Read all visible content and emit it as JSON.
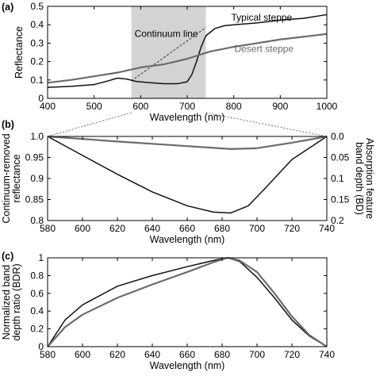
{
  "chart_data": [
    {
      "panel": "(a)",
      "type": "line",
      "xlabel": "Wavelength (nm)",
      "ylabel": "Reflectance",
      "xlim": [
        400,
        1000
      ],
      "ylim": [
        0,
        0.5
      ],
      "xticks": [
        "400",
        "500",
        "600",
        "700",
        "800",
        "900",
        "1000"
      ],
      "yticks": [
        "0",
        "0.1",
        "0.2",
        "0.3",
        "0.4",
        "0.5"
      ],
      "highlight_band": [
        580,
        740
      ],
      "highlight_color": "#d3d3d3",
      "annotation": "Continuum line",
      "continuum_line": {
        "x": [
          580,
          740
        ],
        "y": [
          0.095,
          0.385
        ]
      },
      "series": [
        {
          "name": "Typical steppe",
          "color": "#111111",
          "x": [
            400,
            450,
            500,
            530,
            550,
            570,
            590,
            620,
            650,
            680,
            700,
            710,
            720,
            730,
            740,
            760,
            780,
            800,
            850,
            900,
            950,
            1000
          ],
          "y": [
            0.06,
            0.065,
            0.075,
            0.095,
            0.11,
            0.105,
            0.092,
            0.085,
            0.08,
            0.08,
            0.09,
            0.13,
            0.2,
            0.28,
            0.34,
            0.38,
            0.395,
            0.4,
            0.41,
            0.425,
            0.435,
            0.455
          ]
        },
        {
          "name": "Desert steppe",
          "color": "#6b6b6b",
          "x": [
            400,
            450,
            500,
            550,
            600,
            650,
            700,
            750,
            800,
            850,
            900,
            950,
            1000
          ],
          "y": [
            0.085,
            0.1,
            0.12,
            0.14,
            0.168,
            0.185,
            0.215,
            0.255,
            0.28,
            0.3,
            0.32,
            0.335,
            0.35
          ]
        }
      ]
    },
    {
      "panel": "(b)",
      "type": "line",
      "xlabel": "Wavelength (nm)",
      "ylabel": "Continuum-removed reflectance",
      "y2label": "Absorption feature band depth (BD)",
      "xlim": [
        580,
        740
      ],
      "ylim": [
        0.8,
        1.0
      ],
      "xticks": [
        "580",
        "600",
        "620",
        "640",
        "660",
        "680",
        "700",
        "720",
        "740"
      ],
      "yticks": [
        "0.8",
        "0.85",
        "0.9",
        "0.95",
        "1.0"
      ],
      "y2ticks": [
        "0.0",
        "0.05",
        "0.1",
        "0.15",
        "0.2"
      ],
      "series": [
        {
          "name": "Typical steppe",
          "color": "#111111",
          "x": [
            580,
            600,
            620,
            640,
            660,
            675,
            685,
            695,
            705,
            720,
            740
          ],
          "y": [
            1.0,
            0.955,
            0.91,
            0.868,
            0.835,
            0.82,
            0.818,
            0.835,
            0.878,
            0.945,
            1.0
          ]
        },
        {
          "name": "Desert steppe",
          "color": "#6b6b6b",
          "x": [
            580,
            620,
            660,
            685,
            700,
            720,
            740
          ],
          "y": [
            1.0,
            0.988,
            0.977,
            0.97,
            0.972,
            0.985,
            1.0
          ]
        }
      ]
    },
    {
      "panel": "(c)",
      "type": "line",
      "xlabel": "Wavelength (nm)",
      "ylabel": "Normalized band depth ratio (BDR)",
      "xlim": [
        580,
        740
      ],
      "ylim": [
        0,
        1
      ],
      "xticks": [
        "580",
        "600",
        "620",
        "640",
        "660",
        "680",
        "700",
        "720",
        "740"
      ],
      "yticks": [
        "0",
        "0.2",
        "0.4",
        "0.6",
        "0.8",
        "1"
      ],
      "series": [
        {
          "name": "Typical steppe",
          "color": "#111111",
          "x": [
            580,
            590,
            600,
            620,
            640,
            660,
            675,
            683,
            690,
            700,
            710,
            720,
            730,
            740
          ],
          "y": [
            0,
            0.3,
            0.47,
            0.68,
            0.8,
            0.9,
            0.97,
            1.0,
            0.96,
            0.78,
            0.55,
            0.3,
            0.12,
            0.0
          ]
        },
        {
          "name": "Desert steppe",
          "color": "#6b6b6b",
          "x": [
            580,
            590,
            600,
            620,
            640,
            660,
            675,
            683,
            690,
            700,
            710,
            720,
            730,
            740
          ],
          "y": [
            0,
            0.22,
            0.36,
            0.55,
            0.7,
            0.84,
            0.95,
            1.0,
            0.97,
            0.84,
            0.6,
            0.34,
            0.13,
            0.0
          ]
        }
      ]
    }
  ],
  "connectors": {
    "from_panel": 0,
    "to_panel": 1,
    "from_x": [
      580,
      740
    ]
  }
}
